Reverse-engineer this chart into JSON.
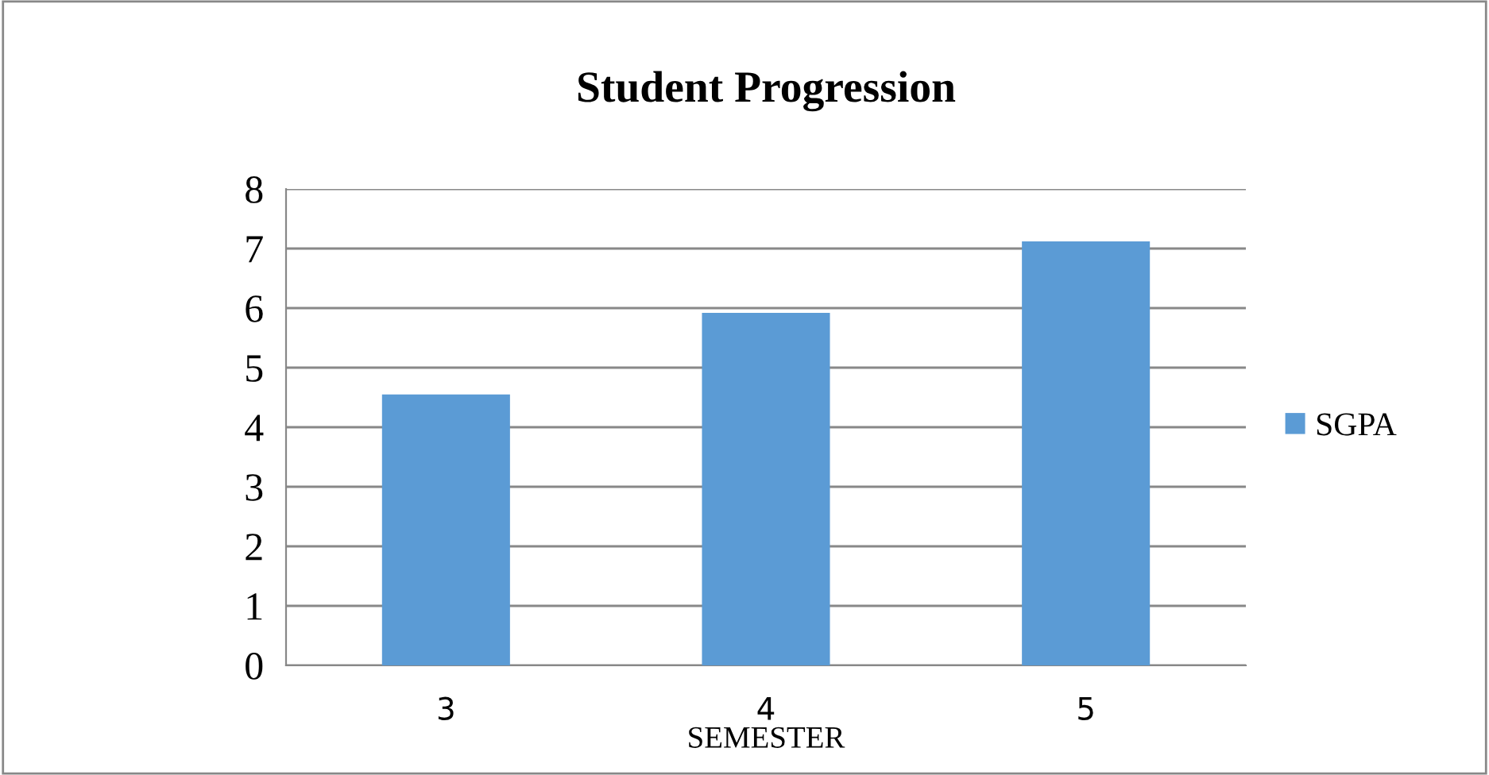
{
  "chart_data": {
    "type": "bar",
    "title": "Student Progression",
    "xlabel": "SEMESTER",
    "categories": [
      "3",
      "4",
      "5"
    ],
    "series": [
      {
        "name": "SGPA",
        "color": "#5b9bd5",
        "values": [
          4.55,
          5.92,
          7.12
        ]
      }
    ],
    "ylim": [
      0,
      8
    ],
    "yticks": [
      0,
      1,
      2,
      3,
      4,
      5,
      6,
      7,
      8
    ],
    "grid": "y",
    "legend": "right"
  }
}
